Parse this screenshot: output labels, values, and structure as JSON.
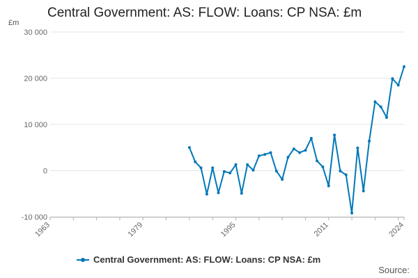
{
  "chart_data": {
    "type": "line",
    "title": "Central Government: AS: FLOW: Loans: CP NSA: £m",
    "ylabel": "£m",
    "ylim": [
      -10000,
      30000
    ],
    "yticks": [
      30000,
      20000,
      10000,
      0,
      -10000
    ],
    "ytick_labels": [
      "30 000",
      "20 000",
      "10 000",
      "0",
      "-10 000"
    ],
    "xlim": [
      1963,
      2024
    ],
    "xticks": [
      1963,
      1979,
      1995,
      2011,
      2024
    ],
    "xtick_labels": [
      "1963",
      "1979",
      "1995",
      "2011",
      "2024"
    ],
    "grid": true,
    "legend_position": "bottom",
    "color": "#0077b8",
    "series": [
      {
        "name": "Central Government: AS: FLOW: Loans: CP NSA: £m",
        "x": [
          1987,
          1988,
          1989,
          1990,
          1991,
          1992,
          1993,
          1994,
          1995,
          1996,
          1997,
          1998,
          1999,
          2000,
          2001,
          2002,
          2003,
          2004,
          2005,
          2006,
          2007,
          2008,
          2009,
          2010,
          2011,
          2012,
          2013,
          2014,
          2015,
          2016,
          2017,
          2018,
          2019,
          2020,
          2021,
          2022,
          2023,
          2024
        ],
        "values": [
          5000,
          1900,
          600,
          -5100,
          600,
          -4800,
          -200,
          -500,
          1300,
          -4900,
          1300,
          100,
          3200,
          3500,
          3900,
          -100,
          -1900,
          2900,
          4700,
          3900,
          4400,
          7000,
          2100,
          800,
          -3300,
          7700,
          -100,
          -900,
          -9200,
          4900,
          -4400,
          6400,
          14900,
          13800,
          11500,
          19900,
          18500,
          22500
        ]
      }
    ]
  },
  "source_label": "Source:"
}
